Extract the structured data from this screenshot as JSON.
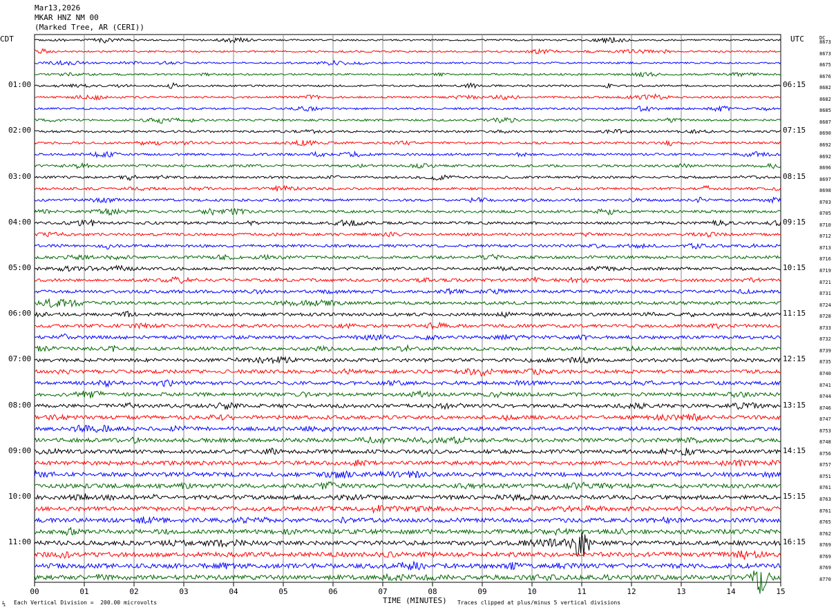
{
  "header": {
    "date": "Mar13,2026",
    "station": "MKAR HNZ NM 00",
    "location": "(Marked Tree, AR (CERI))"
  },
  "left_zone": "CDT",
  "right_zone": "UTC",
  "dc_label": "DC",
  "footer": {
    "scale_mark": "⅔",
    "scale": "Each Vertical Division =  200.00 microvolts",
    "clip_note": "Traces clipped at plus/minus 5 vertical divisions"
  },
  "colors": {
    "trace": [
      "#000000",
      "#ff0000",
      "#0000ff",
      "#006600"
    ],
    "grid": "#888888"
  },
  "chart_data": {
    "type": "line",
    "xlabel": "TIME (MINUTES)",
    "x_ticks": [
      "00",
      "01",
      "02",
      "03",
      "04",
      "05",
      "06",
      "07",
      "08",
      "09",
      "10",
      "11",
      "12",
      "13",
      "14",
      "15"
    ],
    "xlim": [
      0,
      15
    ],
    "traces_per_hour": 4,
    "row_labels_cdt": [
      "01:00",
      "02:00",
      "03:00",
      "04:00",
      "05:00",
      "06:00",
      "07:00",
      "08:00",
      "09:00",
      "10:00",
      "11:00"
    ],
    "row_labels_utc": [
      "06:15",
      "07:15",
      "08:15",
      "09:15",
      "10:15",
      "11:15",
      "12:15",
      "13:15",
      "14:15",
      "15:15",
      "16:15"
    ],
    "dc_offsets": [
      8673,
      8673,
      8675,
      8676,
      8682,
      8682,
      8685,
      8687,
      8690,
      8692,
      8692,
      8696,
      8697,
      8698,
      8703,
      8705,
      8710,
      8712,
      8713,
      8716,
      8719,
      8721,
      8731,
      8724,
      8728,
      8733,
      8732,
      8739,
      8735,
      8740,
      8741,
      8744,
      8746,
      8747,
      8753,
      8748,
      8756,
      8757,
      8751,
      8761,
      8763,
      8761,
      8765,
      8762,
      8769,
      8769,
      8769,
      8770
    ],
    "events": [
      {
        "trace": 44,
        "minute": 11.0,
        "note": "large clipped signal"
      },
      {
        "trace": 47,
        "minute": 14.6,
        "note": "large clipped signal"
      }
    ]
  }
}
